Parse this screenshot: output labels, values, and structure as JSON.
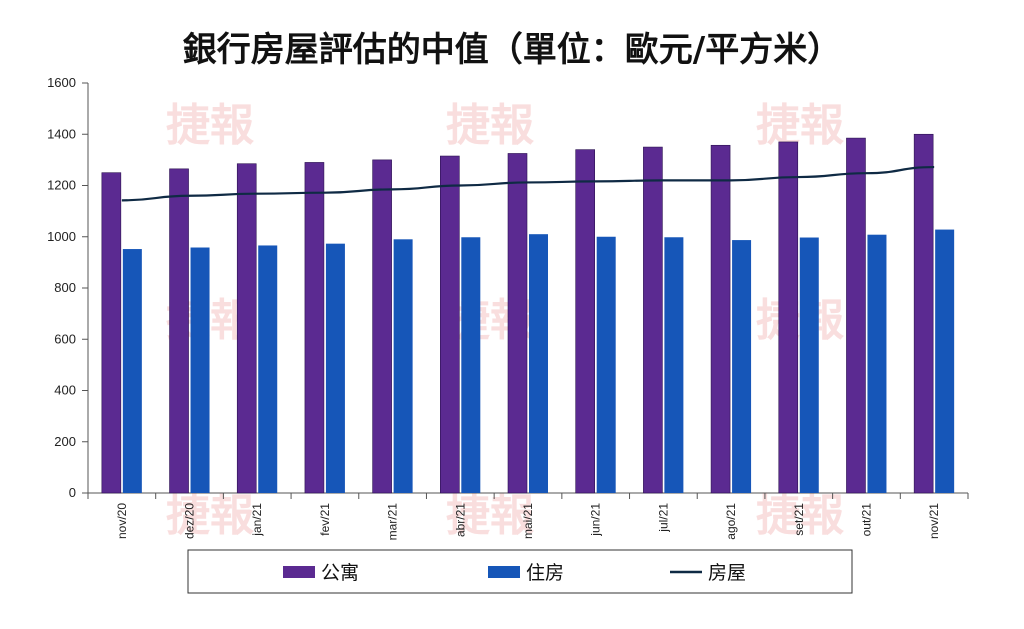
{
  "title": "銀行房屋評估的中值（單位：歐元/平方米）",
  "watermark_text": "捷報",
  "chart_data": {
    "type": "bar",
    "categories": [
      "nov/20",
      "dez/20",
      "jan/21",
      "fev/21",
      "mar/21",
      "abr/21",
      "mai/21",
      "jun/21",
      "jul/21",
      "ago/21",
      "set/21",
      "out/21",
      "nov/21"
    ],
    "series": [
      {
        "name": "公寓",
        "type": "bar",
        "color": "#5b2a91",
        "values": [
          1250,
          1265,
          1285,
          1290,
          1300,
          1315,
          1325,
          1340,
          1350,
          1357,
          1370,
          1385,
          1400
        ]
      },
      {
        "name": "住房",
        "type": "bar",
        "color": "#1656b8",
        "values": [
          952,
          958,
          966,
          973,
          990,
          998,
          1010,
          1000,
          998,
          987,
          997,
          1008,
          1028
        ]
      },
      {
        "name": "房屋",
        "type": "line",
        "color": "#0f2a44",
        "values": [
          1142,
          1160,
          1168,
          1172,
          1185,
          1200,
          1212,
          1216,
          1220,
          1220,
          1233,
          1248,
          1272
        ]
      }
    ],
    "ylim": [
      0,
      1600
    ],
    "yticks": [
      0,
      200,
      400,
      600,
      800,
      1000,
      1200,
      1400,
      1600
    ],
    "grid": false,
    "legend_position": "bottom"
  }
}
